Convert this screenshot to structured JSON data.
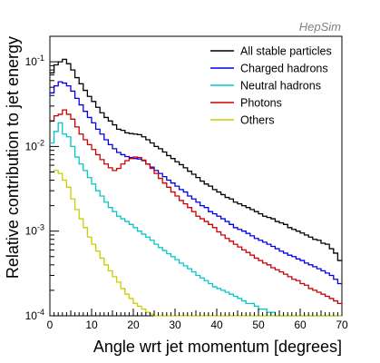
{
  "annotation": "HepSim",
  "chart_data": {
    "type": "step",
    "xlabel": "Angle wrt jet momentum [degrees]",
    "ylabel": "Relative contribution to jet energy",
    "xlim": [
      0,
      70
    ],
    "ylim": [
      0.0001,
      0.2
    ],
    "yscale": "log",
    "bin_width": 1,
    "x_ticks": [
      0,
      10,
      20,
      30,
      40,
      50,
      60,
      70
    ],
    "y_ticks": [
      {
        "value": 0.0001,
        "base": "10",
        "exp": "-4"
      },
      {
        "value": 0.001,
        "base": "10",
        "exp": "-3"
      },
      {
        "value": 0.01,
        "base": "10",
        "exp": "-2"
      },
      {
        "value": 0.1,
        "base": "10",
        "exp": "-1"
      }
    ],
    "legend_position": "top-right",
    "series": [
      {
        "name": "All stable particles",
        "color": "#000000",
        "values": [
          0.074,
          0.092,
          0.1,
          0.107,
          0.095,
          0.08,
          0.065,
          0.055,
          0.046,
          0.039,
          0.034,
          0.029,
          0.025,
          0.022,
          0.02,
          0.018,
          0.016,
          0.0155,
          0.0145,
          0.0142,
          0.014,
          0.0138,
          0.013,
          0.012,
          0.011,
          0.01,
          0.0094,
          0.0086,
          0.0078,
          0.0072,
          0.0066,
          0.0061,
          0.0056,
          0.0051,
          0.0047,
          0.0043,
          0.0039,
          0.0036,
          0.0034,
          0.0031,
          0.0029,
          0.0027,
          0.0025,
          0.0024,
          0.0022,
          0.0021,
          0.002,
          0.0019,
          0.0018,
          0.0017,
          0.0016,
          0.0015,
          0.00145,
          0.0014,
          0.0013,
          0.00125,
          0.0012,
          0.0011,
          0.00105,
          0.001,
          0.00095,
          0.0009,
          0.00085,
          0.0008,
          0.00078,
          0.00072,
          0.0007,
          0.00062,
          0.00055,
          0.00045
        ]
      },
      {
        "name": "Charged hadrons",
        "color": "#0000ee",
        "values": [
          0.043,
          0.052,
          0.058,
          0.056,
          0.052,
          0.045,
          0.037,
          0.031,
          0.026,
          0.022,
          0.019,
          0.016,
          0.014,
          0.012,
          0.0105,
          0.0094,
          0.0085,
          0.008,
          0.0076,
          0.0074,
          0.0072,
          0.0071,
          0.0068,
          0.0062,
          0.0057,
          0.0052,
          0.0048,
          0.0044,
          0.004,
          0.0037,
          0.0034,
          0.0031,
          0.0029,
          0.0026,
          0.0024,
          0.0022,
          0.002,
          0.0019,
          0.0017,
          0.0016,
          0.0015,
          0.0014,
          0.0013,
          0.0012,
          0.0011,
          0.00105,
          0.001,
          0.00094,
          0.00088,
          0.00082,
          0.00078,
          0.00074,
          0.0007,
          0.00066,
          0.00062,
          0.00058,
          0.00055,
          0.00052,
          0.0005,
          0.00047,
          0.00045,
          0.00042,
          0.0004,
          0.00038,
          0.00036,
          0.00034,
          0.00032,
          0.0003,
          0.00027,
          0.00024
        ]
      },
      {
        "name": "Neutral hadrons",
        "color": "#00c8c8",
        "values": [
          0.011,
          0.015,
          0.019,
          0.014,
          0.013,
          0.01,
          0.0075,
          0.0062,
          0.0052,
          0.0043,
          0.0036,
          0.003,
          0.0026,
          0.0022,
          0.0019,
          0.0017,
          0.0015,
          0.0014,
          0.0013,
          0.0012,
          0.0011,
          0.001,
          0.00092,
          0.00085,
          0.00078,
          0.0007,
          0.00064,
          0.00059,
          0.00054,
          0.0005,
          0.00046,
          0.00042,
          0.00039,
          0.00036,
          0.00033,
          0.0003,
          0.00028,
          0.00026,
          0.00024,
          0.00022,
          0.00021,
          0.0002,
          0.00019,
          0.00018,
          0.00017,
          0.00016,
          0.00015,
          0.00014,
          0.00014,
          0.00013,
          0.00012,
          0.00012,
          0.00011,
          0.00011,
          0.0001,
          0.0001,
          0.0001,
          0.0001,
          0.0001,
          0.0001,
          0.0001,
          0.0001,
          0.0001,
          0.0001,
          0.0001,
          0.0001,
          0.0001,
          0.0001,
          0.0001,
          0.0001
        ]
      },
      {
        "name": "Photons",
        "color": "#cc0000",
        "values": [
          0.02,
          0.023,
          0.024,
          0.027,
          0.024,
          0.021,
          0.017,
          0.014,
          0.012,
          0.0105,
          0.0092,
          0.008,
          0.007,
          0.0062,
          0.0056,
          0.0052,
          0.0055,
          0.0062,
          0.0068,
          0.0072,
          0.0075,
          0.0074,
          0.0069,
          0.0062,
          0.0055,
          0.0048,
          0.0042,
          0.0037,
          0.0033,
          0.0029,
          0.0026,
          0.0023,
          0.0021,
          0.0019,
          0.0017,
          0.0015,
          0.0014,
          0.0013,
          0.0012,
          0.0011,
          0.00098,
          0.0009,
          0.00082,
          0.00076,
          0.0007,
          0.00065,
          0.0006,
          0.00056,
          0.00052,
          0.00048,
          0.00045,
          0.00042,
          0.0004,
          0.00037,
          0.00035,
          0.00033,
          0.00031,
          0.00029,
          0.00027,
          0.00026,
          0.00024,
          0.00023,
          0.00021,
          0.0002,
          0.00019,
          0.00018,
          0.00017,
          0.00016,
          0.00015,
          0.00014
        ]
      },
      {
        "name": "Others",
        "color": "#cccc00",
        "values": [
          0.005,
          0.0052,
          0.0048,
          0.004,
          0.0033,
          0.0024,
          0.0018,
          0.0014,
          0.0011,
          0.00085,
          0.0007,
          0.00058,
          0.00048,
          0.0004,
          0.00034,
          0.00029,
          0.00025,
          0.00021,
          0.00018,
          0.00016,
          0.00014,
          0.00013,
          0.00012,
          0.00011,
          0.000105,
          0.0001,
          0.0001,
          0.0001,
          0.0001,
          0.0001,
          0.0001,
          0.0001,
          0.0001,
          0.0001,
          0.0001,
          0.0001,
          0.0001,
          0.0001,
          0.0001,
          0.0001,
          0.0001,
          0.0001,
          0.0001,
          0.0001,
          0.0001,
          0.0001,
          0.0001,
          0.0001,
          0.0001,
          0.0001,
          0.0001,
          0.0001,
          0.0001,
          0.0001,
          0.0001,
          0.0001,
          0.0001,
          0.0001,
          0.0001,
          0.0001,
          0.0001,
          0.0001,
          0.0001,
          0.0001,
          0.0001,
          0.0001,
          0.0001,
          0.0001,
          0.0001,
          0.0001
        ]
      }
    ]
  }
}
